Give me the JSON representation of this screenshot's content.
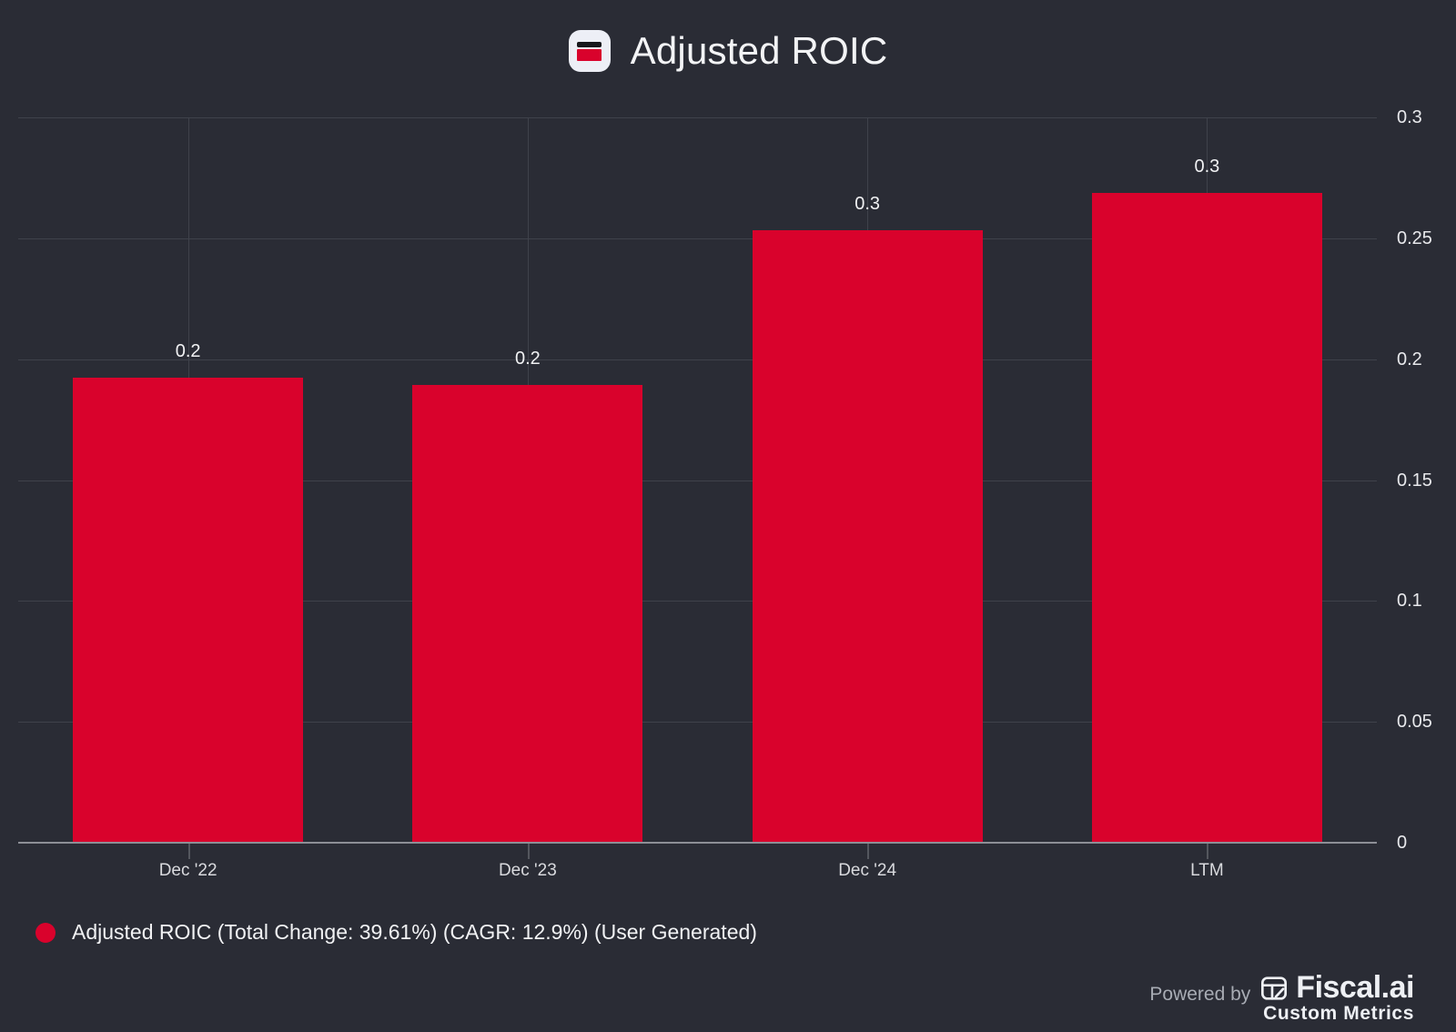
{
  "header": {
    "title": "Adjusted ROIC"
  },
  "chart_data": {
    "type": "bar",
    "title": "Adjusted ROIC",
    "categories": [
      "Dec '22",
      "Dec '23",
      "Dec '24",
      "LTM"
    ],
    "values": [
      0.1923,
      0.1893,
      0.2533,
      0.2687
    ],
    "bar_labels": [
      "0.2",
      "0.2",
      "0.3",
      "0.3"
    ],
    "xlabel": "",
    "ylabel": "",
    "ylim": [
      0,
      0.3
    ],
    "yticks": [
      0,
      0.05,
      0.1,
      0.15,
      0.2,
      0.25,
      0.3
    ],
    "ytick_labels": [
      "0",
      "0.05",
      "0.1",
      "0.15",
      "0.2",
      "0.25",
      "0.3"
    ],
    "grid": true,
    "y_axis_side": "right",
    "legend_position": "bottom-left",
    "bar_color": "#d9022c"
  },
  "legend": {
    "label": "Adjusted ROIC (Total Change: 39.61%) (CAGR: 12.9%) (User Generated)",
    "marker": "circle-icon"
  },
  "footer": {
    "powered_by": "Powered by",
    "brand": "Fiscal.ai",
    "subtitle": "Custom Metrics"
  },
  "colors": {
    "background": "#2a2c35",
    "bar": "#d9022c",
    "grid": "#3f424b",
    "axis": "#8d8f96",
    "tick": "#54575e",
    "title_text": "#f3f4f6",
    "axis_text_y": "#e8e9ec",
    "axis_text_x": "#d9dade",
    "value_text": "#f0f1f3",
    "legend_text": "#f1f2f4",
    "muted_text": "#a8acb4",
    "brand_text": "#eef0f4",
    "icon_bg": "#edeff6",
    "icon_dark": "#17181c"
  }
}
